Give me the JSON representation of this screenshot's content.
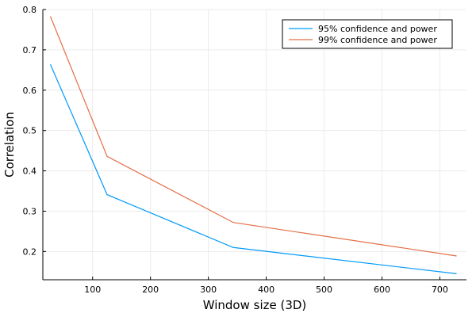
{
  "chart_data": {
    "type": "line",
    "xlabel": "Window size (3D)",
    "ylabel": "Correlation",
    "xlim": [
      14,
      746
    ],
    "ylim": [
      0.13,
      0.8
    ],
    "x_ticks": [
      100,
      200,
      300,
      400,
      500,
      600,
      700
    ],
    "y_ticks": [
      0.2,
      0.3,
      0.4,
      0.5,
      0.6,
      0.7,
      0.8
    ],
    "x_tick_labels": [
      "100",
      "200",
      "300",
      "400",
      "500",
      "600",
      "700"
    ],
    "y_tick_labels": [
      "0.2",
      "0.3",
      "0.4",
      "0.5",
      "0.6",
      "0.7",
      "0.8"
    ],
    "grid": true,
    "legend_position": "top-right",
    "series": [
      {
        "name": "95% confidence and power",
        "color": "#009AFA",
        "x": [
          27,
          125,
          343,
          729
        ],
        "y": [
          0.664,
          0.341,
          0.21,
          0.145
        ]
      },
      {
        "name": "99% confidence and power",
        "color": "#E36F47",
        "x": [
          27,
          125,
          343,
          729
        ],
        "y": [
          0.783,
          0.436,
          0.272,
          0.189
        ]
      }
    ]
  }
}
